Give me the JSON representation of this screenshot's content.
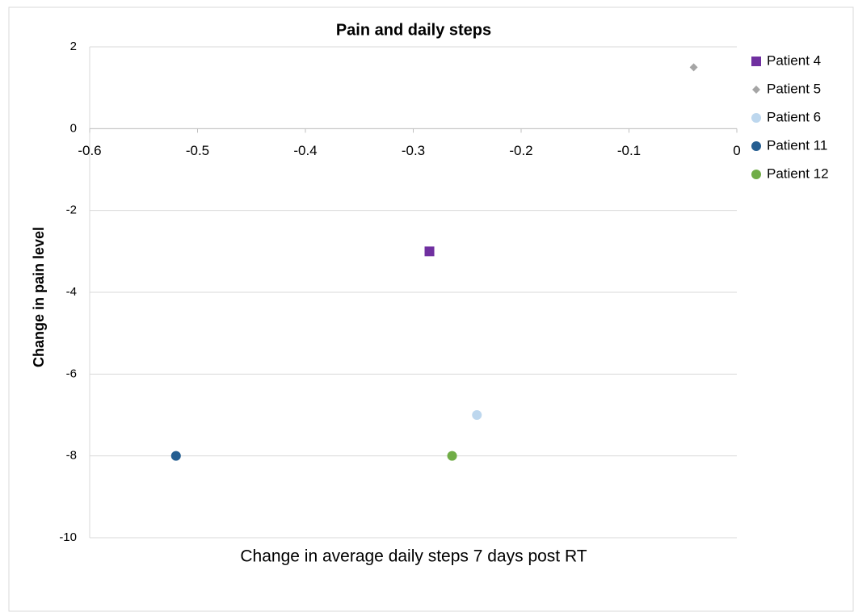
{
  "chart_data": {
    "type": "scatter",
    "title": "Pain and daily steps",
    "x_label": "Change in average daily steps 7 days post RT",
    "y_label": "Change in pain level",
    "xlim": [
      -0.6,
      0
    ],
    "xticks": [
      -0.6,
      -0.5,
      -0.4,
      -0.3,
      -0.2,
      -0.1,
      0
    ],
    "ylim": [
      -10,
      2
    ],
    "yticks": [
      -10,
      -8,
      -6,
      -4,
      -2,
      0,
      2
    ],
    "grid": true,
    "legend": "right",
    "series": [
      {
        "name": "Patient 4",
        "color": "#7030a0",
        "marker": "square",
        "x": [
          -0.285
        ],
        "values": [
          -3
        ]
      },
      {
        "name": "Patient 5",
        "color": "#a5a5a5",
        "marker": "diamond",
        "x": [
          -0.04
        ],
        "values": [
          1.5
        ]
      },
      {
        "name": "Patient 6",
        "color": "#bdd7ee",
        "marker": "circle",
        "x": [
          -0.241
        ],
        "values": [
          -7
        ]
      },
      {
        "name": "Patient 11",
        "color": "#255e91",
        "marker": "circle",
        "x": [
          -0.52
        ],
        "values": [
          -8
        ]
      },
      {
        "name": "Patient 12",
        "color": "#70ad47",
        "marker": "circle",
        "x": [
          -0.264
        ],
        "values": [
          -8
        ]
      }
    ]
  }
}
